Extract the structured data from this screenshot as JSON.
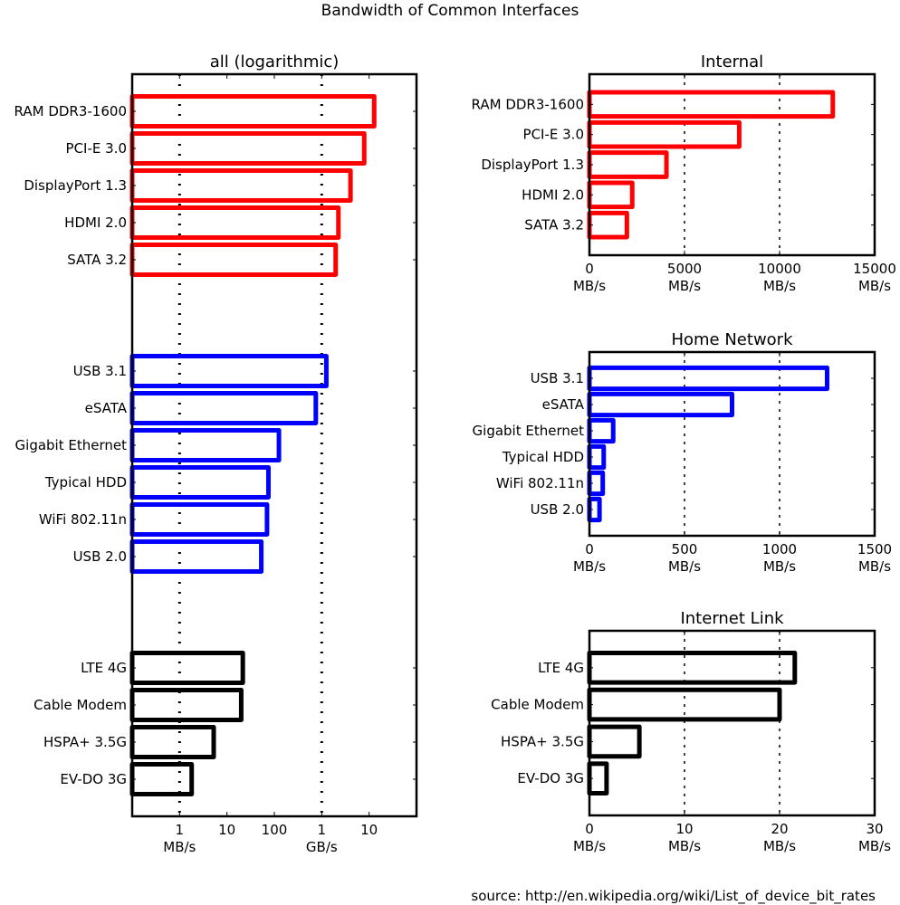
{
  "figure": {
    "title": "Bandwidth of Common Interfaces",
    "source": "source: http://en.wikipedia.org/wiki/List_of_device_bit_rates",
    "colors": {
      "internal": "#ff0000",
      "home": "#0000ff",
      "internet": "#000000",
      "axis": "#000000"
    }
  },
  "chart_data": [
    {
      "id": "all",
      "type": "bar",
      "orientation": "horizontal",
      "scale": "log",
      "title": "all (logarithmic)",
      "xlim_mbps": [
        0.1,
        100000
      ],
      "grid": "dotted vertical at 1 MB/s and 1 GB/s",
      "xticks": [
        {
          "value": 1,
          "label": "1",
          "unit": "MB/s"
        },
        {
          "value": 10,
          "label": "10",
          "unit": ""
        },
        {
          "value": 100,
          "label": "100",
          "unit": ""
        },
        {
          "value": 1000,
          "label": "1",
          "unit": "GB/s"
        },
        {
          "value": 10000,
          "label": "10",
          "unit": ""
        }
      ],
      "groups": [
        {
          "name": "Internal",
          "color_key": "internal",
          "categories": [
            "RAM DDR3-1600",
            "PCI-E 3.0",
            "DisplayPort 1.3",
            "HDMI 2.0",
            "SATA 3.2"
          ],
          "values": [
            12800,
            7877,
            4050,
            2250,
            1969
          ]
        },
        {
          "name": "Home Network",
          "color_key": "home",
          "categories": [
            "USB 3.1",
            "eSATA",
            "Gigabit Ethernet",
            "Typical HDD",
            "WiFi 802.11n",
            "USB 2.0"
          ],
          "values": [
            1250,
            750,
            125,
            75,
            70,
            53
          ]
        },
        {
          "name": "Internet Link",
          "color_key": "internet",
          "categories": [
            "LTE 4G",
            "Cable Modem",
            "HSPA+ 3.5G",
            "EV-DO 3G"
          ],
          "values": [
            21.6,
            20,
            5.25,
            1.8
          ]
        }
      ]
    },
    {
      "id": "internal",
      "type": "bar",
      "orientation": "horizontal",
      "scale": "linear",
      "title": "Internal",
      "color_key": "internal",
      "xlim": [
        0,
        15000
      ],
      "xlabel_unit": "MB/s",
      "xticks": [
        0,
        5000,
        10000,
        15000
      ],
      "gridlines": [
        5000,
        10000
      ],
      "categories": [
        "RAM DDR3-1600",
        "PCI-E 3.0",
        "DisplayPort 1.3",
        "HDMI 2.0",
        "SATA 3.2"
      ],
      "values": [
        12800,
        7877,
        4050,
        2250,
        1969
      ]
    },
    {
      "id": "home",
      "type": "bar",
      "orientation": "horizontal",
      "scale": "linear",
      "title": "Home Network",
      "color_key": "home",
      "xlim": [
        0,
        1500
      ],
      "xlabel_unit": "MB/s",
      "xticks": [
        0,
        500,
        1000,
        1500
      ],
      "gridlines": [
        500,
        1000
      ],
      "categories": [
        "USB 3.1",
        "eSATA",
        "Gigabit Ethernet",
        "Typical HDD",
        "WiFi 802.11n",
        "USB 2.0"
      ],
      "values": [
        1250,
        750,
        125,
        75,
        70,
        53
      ]
    },
    {
      "id": "internet",
      "type": "bar",
      "orientation": "horizontal",
      "scale": "linear",
      "title": "Internet Link",
      "color_key": "internet",
      "xlim": [
        0,
        30
      ],
      "xlabel_unit": "MB/s",
      "xticks": [
        0,
        10,
        20,
        30
      ],
      "gridlines": [
        10,
        20
      ],
      "categories": [
        "LTE 4G",
        "Cable Modem",
        "HSPA+ 3.5G",
        "EV-DO 3G"
      ],
      "values": [
        21.6,
        20,
        5.25,
        1.8
      ]
    }
  ]
}
